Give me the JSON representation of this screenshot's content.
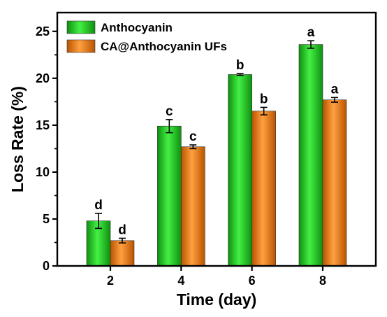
{
  "chart_data": {
    "type": "bar",
    "categories": [
      "2",
      "4",
      "6",
      "8"
    ],
    "xlabel": "Time (day)",
    "ylabel": "Loss Rate (%)",
    "ylim": [
      0,
      27
    ],
    "yticks": [
      0,
      5,
      10,
      15,
      20,
      25
    ],
    "grid": false,
    "legend": "top-left",
    "series": [
      {
        "name": "Anthocyanin",
        "color": "#22cc22",
        "values": [
          4.8,
          14.9,
          20.4,
          23.6
        ],
        "errors": [
          0.8,
          0.7,
          0.1,
          0.4
        ],
        "letters": [
          "d",
          "c",
          "b",
          "a"
        ]
      },
      {
        "name": "CA@Anthocyanin UFs",
        "color": "#ee7700",
        "values": [
          2.7,
          12.7,
          16.5,
          17.7
        ],
        "errors": [
          0.25,
          0.2,
          0.4,
          0.25
        ],
        "letters": [
          "d",
          "c",
          "b",
          "a"
        ]
      }
    ]
  }
}
